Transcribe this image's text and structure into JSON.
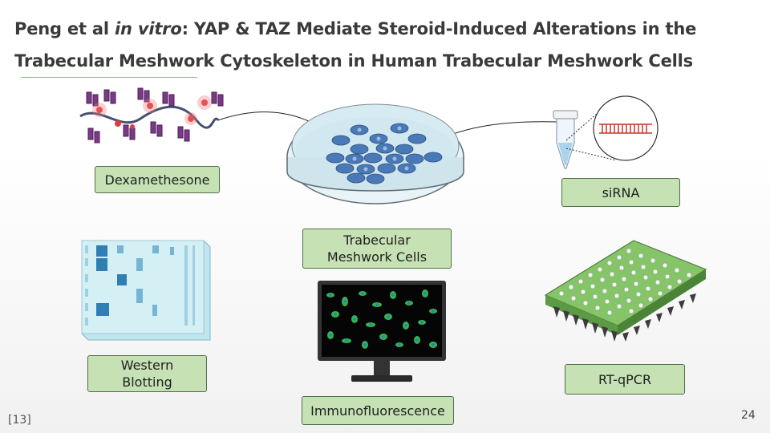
{
  "title": {
    "part1": "Peng et al ",
    "italic": "in vitro",
    "part2": ": YAP & TAZ Mediate Steroid-Induced Alterations in the Trabecular Meshwork Cytoskeleton in Human Trabecular Meshwork Cells"
  },
  "labels": {
    "dexamethasone": "Dexamethesone",
    "sirna": "siRNA",
    "tm_cells": "Trabecular Meshwork Cells",
    "western": "Western Blotting",
    "immuno": "Immunofluorescence",
    "rtqpcr": "RT-qPCR"
  },
  "reference": "[13]",
  "page_number": "24",
  "colors": {
    "label_fill": "#c6e2b5",
    "label_border": "#4f6f45",
    "cell_blue": "#3d6fb0",
    "rna_red": "#c0392b",
    "plate_green": "#86c46a"
  }
}
